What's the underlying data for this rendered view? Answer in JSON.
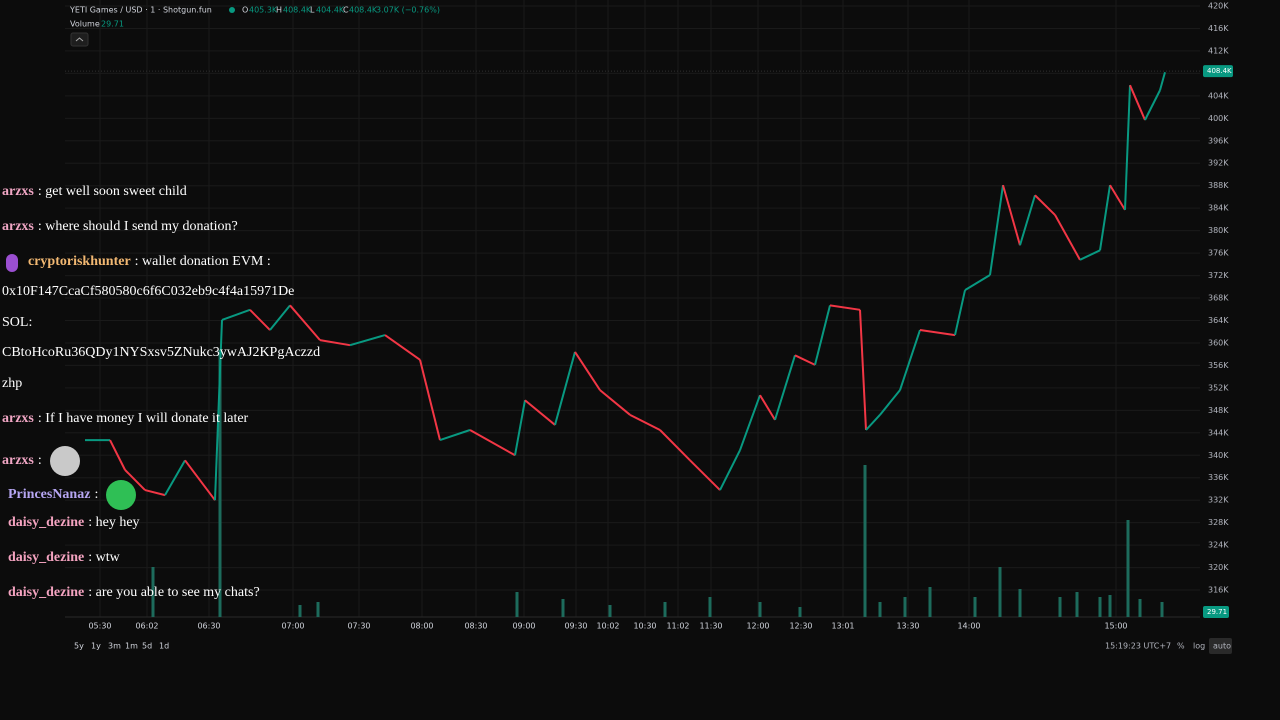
{
  "header": {
    "title": "YETI Games / USD · 1 · Shotgun.fun",
    "o_label": "O",
    "o": "405.3K",
    "h_label": "H",
    "h": "408.4K",
    "l_label": "L",
    "l": "404.4K",
    "c_label": "C",
    "c": "408.4K",
    "change": "3.07K (−0.76%)",
    "volume_label": "Volume",
    "volume_value": "29.71"
  },
  "chart_data": {
    "type": "line",
    "x": [
      4,
      9,
      12,
      16,
      20,
      24,
      30,
      31.4,
      37,
      41,
      45,
      51,
      57,
      64,
      71,
      75,
      81,
      90,
      92,
      98,
      102,
      107,
      113,
      119,
      125,
      131,
      135,
      139,
      142,
      146,
      150,
      153,
      159,
      160.2,
      163,
      167,
      171,
      178,
      180,
      185,
      187.6,
      191,
      194,
      198,
      203,
      207,
      209,
      212,
      213,
      216,
      219,
      220
    ],
    "values": [
      342700,
      342700,
      337400,
      333800,
      332900,
      339100,
      332000,
      364100,
      365900,
      362300,
      366700,
      360500,
      359600,
      361400,
      357000,
      342700,
      344500,
      340000,
      349800,
      345400,
      358400,
      351600,
      347200,
      344500,
      339100,
      333800,
      340900,
      350700,
      346300,
      357800,
      356100,
      366700,
      365900,
      344500,
      347200,
      351600,
      362300,
      361400,
      369400,
      372100,
      388100,
      377400,
      386300,
      382800,
      374800,
      376500,
      388100,
      383700,
      405900,
      399700,
      405000,
      408200
    ],
    "colors": {
      "up": "#089981",
      "down": "#f23645"
    },
    "xlim": [
      0,
      227
    ],
    "ylim": [
      311200,
      421070
    ],
    "xticks": [
      {
        "value": 7,
        "label": "05:30"
      },
      {
        "value": 16.4,
        "label": "06:02"
      },
      {
        "value": 28.8,
        "label": "06:30"
      },
      {
        "value": 45.6,
        "label": "07:00"
      },
      {
        "value": 58.8,
        "label": "07:30"
      },
      {
        "value": 71.4,
        "label": "08:00"
      },
      {
        "value": 82.2,
        "label": "08:30"
      },
      {
        "value": 91.8,
        "label": "09:00"
      },
      {
        "value": 102.2,
        "label": "09:30"
      },
      {
        "value": 108.6,
        "label": "10:02"
      },
      {
        "value": 116,
        "label": "10:30"
      },
      {
        "value": 122.6,
        "label": "11:02"
      },
      {
        "value": 129.2,
        "label": "11:30"
      },
      {
        "value": 138.6,
        "label": "12:00"
      },
      {
        "value": 147.2,
        "label": "12:30"
      },
      {
        "value": 155.6,
        "label": "13:01"
      },
      {
        "value": 168.6,
        "label": "13:30"
      },
      {
        "value": 180.8,
        "label": "14:00"
      },
      {
        "value": 210.2,
        "label": "15:00"
      }
    ],
    "yticks": [
      {
        "value": 420000,
        "label": "420K"
      },
      {
        "value": 416000,
        "label": "416K"
      },
      {
        "value": 412000,
        "label": "412K"
      },
      {
        "value": 408000,
        "label": "408K"
      },
      {
        "value": 404000,
        "label": "404K"
      },
      {
        "value": 400000,
        "label": "400K"
      },
      {
        "value": 396000,
        "label": "396K"
      },
      {
        "value": 392000,
        "label": "392K"
      },
      {
        "value": 388000,
        "label": "388K"
      },
      {
        "value": 384000,
        "label": "384K"
      },
      {
        "value": 380000,
        "label": "380K"
      },
      {
        "value": 376000,
        "label": "376K"
      },
      {
        "value": 372000,
        "label": "372K"
      },
      {
        "value": 368000,
        "label": "368K"
      },
      {
        "value": 364000,
        "label": "364K"
      },
      {
        "value": 360000,
        "label": "360K"
      },
      {
        "value": 356000,
        "label": "356K"
      },
      {
        "value": 352000,
        "label": "352K"
      },
      {
        "value": 348000,
        "label": "348K"
      },
      {
        "value": 344000,
        "label": "344K"
      },
      {
        "value": 340000,
        "label": "340K"
      },
      {
        "value": 336000,
        "label": "336K"
      },
      {
        "value": 332000,
        "label": "332K"
      },
      {
        "value": 328000,
        "label": "328K"
      },
      {
        "value": 324000,
        "label": "324K"
      },
      {
        "value": 320000,
        "label": "320K"
      },
      {
        "value": 316000,
        "label": "316K"
      }
    ],
    "grid": true,
    "last_price": {
      "value": 408400,
      "label": "408.4K"
    },
    "volume": {
      "x": [
        17.6,
        31,
        47,
        50.6,
        90.4,
        99.6,
        109,
        120,
        129,
        139,
        147,
        160,
        163,
        168,
        173,
        182,
        187,
        191,
        199,
        202.4,
        207,
        209,
        212.6,
        215,
        219.4
      ],
      "values": [
        25,
        133.5,
        6,
        7.5,
        12.5,
        9,
        6,
        7.5,
        10,
        7.5,
        5,
        76,
        7.5,
        10,
        15,
        10,
        25,
        14,
        10,
        12.5,
        10,
        11,
        48.5,
        9,
        7.5
      ],
      "color": "#1d6b5c",
      "y2lim": [
        0,
        160
      ],
      "last_label": "29.71"
    }
  },
  "bottom": {
    "ranges": [
      "5y",
      "1y",
      "3m",
      "1m",
      "5d",
      "1d"
    ],
    "time": "15:19:23 UTC+7",
    "percent": "%",
    "log": "log",
    "auto": "auto"
  },
  "chat": [
    {
      "user": "arzxs",
      "text": ": get well soon sweet child"
    },
    {
      "user": "arzxs",
      "text": ": where should I send my donation?"
    },
    {
      "user": "cryptoriskhunter",
      "text": ": wallet donation EVM :"
    },
    {
      "text": "0x10F147CcaCf580580c6f6C032eb9c4f4a15971De"
    },
    {
      "text": "SOL:"
    },
    {
      "text": "CBtoHcoRu36QDy1NYSxsv5ZNukc3ywAJ2KPgAczzd"
    },
    {
      "text": "zhp"
    },
    {
      "user": "arzxs",
      "text": ": If I have money I will donate it later"
    },
    {
      "user": "arzxs",
      "text": ":"
    },
    {
      "user": "PrincesNanaz",
      "text": ":"
    },
    {
      "user": "daisy_dezine",
      "text": ": hey hey"
    },
    {
      "user": "daisy_dezine",
      "text": ": wtw"
    },
    {
      "user": "daisy_dezine",
      "text": ": are you able to see my chats?"
    }
  ]
}
